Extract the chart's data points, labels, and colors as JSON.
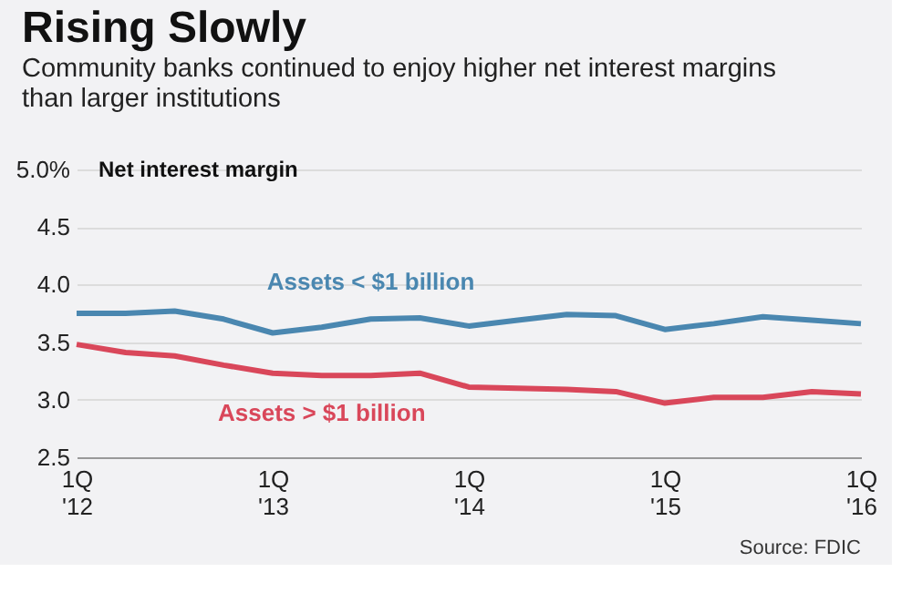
{
  "chart_data": {
    "type": "line",
    "title": "Rising Slowly",
    "subtitle": "Community banks continued to enjoy higher net interest margins than larger institutions",
    "ylabel": "Net interest margin",
    "categories": [
      "1Q '12",
      null,
      null,
      null,
      "1Q '13",
      null,
      null,
      null,
      "1Q '14",
      null,
      null,
      null,
      "1Q '15",
      null,
      null,
      null,
      "1Q '16"
    ],
    "series": [
      {
        "name": "Assets < $1 billion",
        "color": "#4a87b0",
        "values": [
          3.75,
          3.75,
          3.77,
          3.7,
          3.58,
          3.63,
          3.7,
          3.71,
          3.64,
          3.69,
          3.74,
          3.73,
          3.61,
          3.66,
          3.72,
          3.69,
          3.66
        ]
      },
      {
        "name": "Assets > $1 billion",
        "color": "#d9475a",
        "values": [
          3.48,
          3.41,
          3.38,
          3.3,
          3.23,
          3.21,
          3.21,
          3.23,
          3.11,
          3.1,
          3.09,
          3.07,
          2.97,
          3.02,
          3.02,
          3.07,
          3.05
        ]
      }
    ],
    "ylim": [
      2.5,
      5.0
    ],
    "yticks": [
      {
        "value": 2.5,
        "label": "2.5"
      },
      {
        "value": 3.0,
        "label": "3.0"
      },
      {
        "value": 3.5,
        "label": "3.5"
      },
      {
        "value": 4.0,
        "label": "4.0"
      },
      {
        "value": 4.5,
        "label": "4.5"
      },
      {
        "value": 5.0,
        "label": "5.0%"
      }
    ],
    "grid": "y",
    "line_style": "solid",
    "marker": "none",
    "annotations": [
      "Source: FDIC"
    ]
  }
}
